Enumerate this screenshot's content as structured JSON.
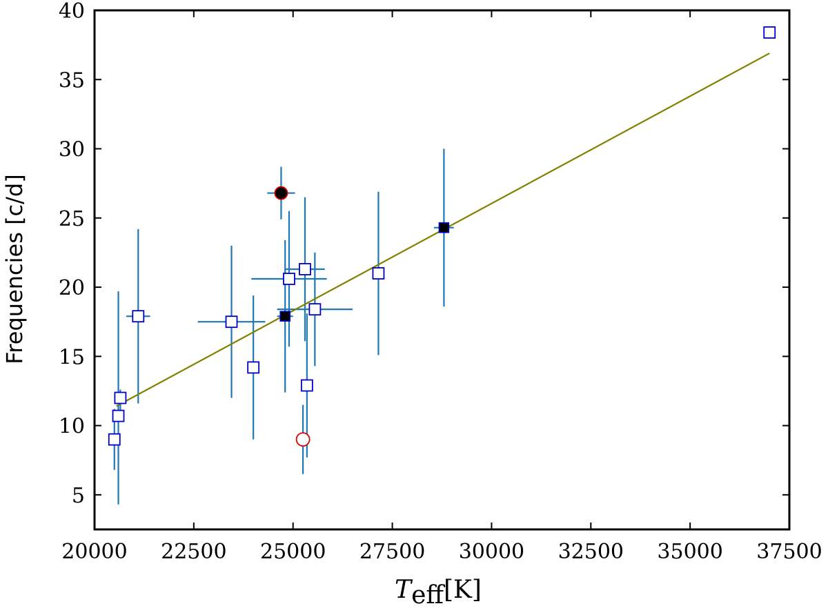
{
  "chart_data": {
    "type": "scatter",
    "xlabel": "T",
    "xlabel_sub": "eff",
    "xlabel_unit": "[K]",
    "ylabel": "Frequencies [c/d]",
    "xlim": [
      20000,
      37500
    ],
    "ylim": [
      2.5,
      40
    ],
    "xticks": [
      20000,
      22500,
      25000,
      27500,
      30000,
      32500,
      35000,
      37500
    ],
    "yticks": [
      5,
      10,
      15,
      20,
      25,
      30,
      35,
      40
    ],
    "grid": false,
    "legend": "none",
    "fit_line": {
      "x": [
        20550,
        37000
      ],
      "y": [
        11.4,
        36.9
      ],
      "color": "#808000"
    },
    "error_bar_color": "#1f77b4",
    "series": [
      {
        "marker": "open-square",
        "color": "#0000cc",
        "points": [
          {
            "x": 20500,
            "y": 9.0,
            "xerr": 0,
            "yerr_lo": 2.2,
            "yerr_hi": 2.2
          },
          {
            "x": 20600,
            "y": 10.7,
            "xerr": 0,
            "yerr_lo": 6.4,
            "yerr_hi": 9.0
          },
          {
            "x": 20650,
            "y": 12.0,
            "xerr": 0,
            "yerr_lo": 1.3,
            "yerr_hi": 0.6
          },
          {
            "x": 21100,
            "y": 17.9,
            "xerr": 300,
            "yerr_lo": 6.3,
            "yerr_hi": 6.3
          },
          {
            "x": 23450,
            "y": 17.5,
            "xerr": 850,
            "yerr_lo": 5.5,
            "yerr_hi": 5.5
          },
          {
            "x": 24000,
            "y": 14.2,
            "xerr": 0,
            "yerr_lo": 5.2,
            "yerr_hi": 5.2
          },
          {
            "x": 24900,
            "y": 20.6,
            "xerr": 950,
            "yerr_lo": 4.9,
            "yerr_hi": 4.9
          },
          {
            "x": 25300,
            "y": 21.3,
            "xerr": 500,
            "yerr_lo": 5.2,
            "yerr_hi": 5.2
          },
          {
            "x": 25350,
            "y": 12.9,
            "xerr": 0,
            "yerr_lo": 5.2,
            "yerr_hi": 5.2
          },
          {
            "x": 25550,
            "y": 18.4,
            "xerr": 950,
            "yerr_lo": 4.1,
            "yerr_hi": 4.1
          },
          {
            "x": 27150,
            "y": 21.0,
            "xerr": 0,
            "yerr_lo": 5.9,
            "yerr_hi": 5.9
          },
          {
            "x": 37000,
            "y": 38.4,
            "xerr": 0,
            "yerr_lo": 0,
            "yerr_hi": 0
          }
        ]
      },
      {
        "marker": "filled-square",
        "color": "#000000",
        "edge": "#0000cc",
        "points": [
          {
            "x": 24800,
            "y": 17.9,
            "xerr": 200,
            "yerr_lo": 5.5,
            "yerr_hi": 5.5
          },
          {
            "x": 28800,
            "y": 24.3,
            "xerr": 250,
            "yerr_lo": 5.7,
            "yerr_hi": 5.7
          }
        ]
      },
      {
        "marker": "filled-circle",
        "color": "#000000",
        "edge": "#cc0000",
        "points": [
          {
            "x": 24700,
            "y": 26.8,
            "xerr": 350,
            "yerr_lo": 1.9,
            "yerr_hi": 1.9
          }
        ]
      },
      {
        "marker": "open-circle",
        "color": "#dd0000",
        "points": [
          {
            "x": 25250,
            "y": 9.0,
            "xerr": 0,
            "yerr_lo": 2.5,
            "yerr_hi": 2.5
          }
        ]
      }
    ]
  }
}
